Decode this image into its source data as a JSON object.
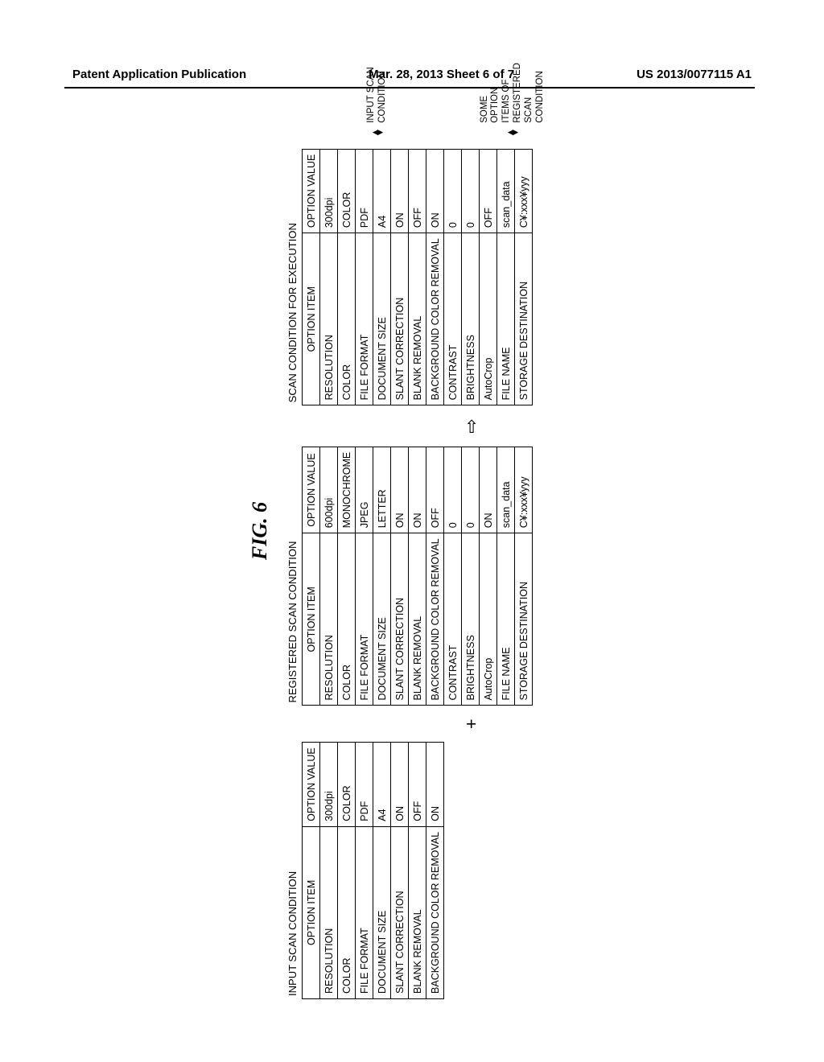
{
  "header": {
    "left": "Patent Application Publication",
    "center": "Mar. 28, 2013  Sheet 6 of 7",
    "right": "US 2013/0077115 A1"
  },
  "figure_label": "FIG. 6",
  "symbols": {
    "plus": "+",
    "arrow": "⇨"
  },
  "tables": {
    "input": {
      "title": "INPUT SCAN CONDITION",
      "headers": [
        "OPTION ITEM",
        "OPTION VALUE"
      ],
      "rows": [
        [
          "RESOLUTION",
          "300dpi"
        ],
        [
          "COLOR",
          "COLOR"
        ],
        [
          "FILE FORMAT",
          "PDF"
        ],
        [
          "DOCUMENT SIZE",
          "A4"
        ],
        [
          "SLANT CORRECTION",
          "ON"
        ],
        [
          "BLANK REMOVAL",
          "OFF"
        ],
        [
          "BACKGROUND COLOR REMOVAL",
          "ON"
        ]
      ]
    },
    "registered": {
      "title": "REGISTERED SCAN CONDITION",
      "headers": [
        "OPTION ITEM",
        "OPTION VALUE"
      ],
      "rows": [
        [
          "RESOLUTION",
          "600dpi"
        ],
        [
          "COLOR",
          "MONOCHROME"
        ],
        [
          "FILE FORMAT",
          "JPEG"
        ],
        [
          "DOCUMENT SIZE",
          "LETTER"
        ],
        [
          "SLANT CORRECTION",
          "ON"
        ],
        [
          "BLANK REMOVAL",
          "ON"
        ],
        [
          "BACKGROUND COLOR REMOVAL",
          "OFF"
        ],
        [
          "CONTRAST",
          "0"
        ],
        [
          "BRIGHTNESS",
          "0"
        ],
        [
          "AutoCrop",
          "ON"
        ],
        [
          "FILE NAME",
          "scan_data"
        ],
        [
          "STORAGE DESTINATION",
          "C¥:xxx¥yyy"
        ]
      ]
    },
    "execution": {
      "title": "SCAN CONDITION FOR EXECUTION",
      "headers": [
        "OPTION ITEM",
        "OPTION VALUE"
      ],
      "rows": [
        [
          "RESOLUTION",
          "300dpi"
        ],
        [
          "COLOR",
          "COLOR"
        ],
        [
          "FILE FORMAT",
          "PDF"
        ],
        [
          "DOCUMENT SIZE",
          "A4"
        ],
        [
          "SLANT CORRECTION",
          "ON"
        ],
        [
          "BLANK REMOVAL",
          "OFF"
        ],
        [
          "BACKGROUND COLOR REMOVAL",
          "ON"
        ],
        [
          "CONTRAST",
          "0"
        ],
        [
          "BRIGHTNESS",
          "0"
        ],
        [
          "AutoCrop",
          "OFF"
        ],
        [
          "FILE NAME",
          "scan_data"
        ],
        [
          "STORAGE DESTINATION",
          "C¥:xxx¥yyy"
        ]
      ]
    }
  },
  "annotations": {
    "top": "INPUT SCAN CONDITION",
    "bottom": "SOME OPTION ITEMS OF REGISTERED SCAN CONDITION"
  }
}
